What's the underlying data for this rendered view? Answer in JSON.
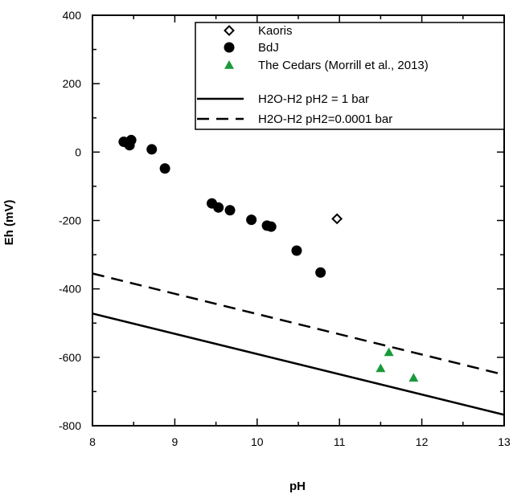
{
  "chart_data": {
    "type": "scatter",
    "xlabel": "pH",
    "ylabel": "Eh  (mV)",
    "xlim": [
      8,
      13
    ],
    "ylim": [
      -800,
      400
    ],
    "xticks": [
      8,
      9,
      10,
      11,
      12,
      13
    ],
    "yticks": [
      -800,
      -600,
      -400,
      -200,
      0,
      200,
      400
    ],
    "grid": false,
    "legend_position": "top-right",
    "series": [
      {
        "name": "Kaoris",
        "marker": "diamond-open",
        "color": "#000000",
        "points": [
          [
            10.97,
            -195
          ]
        ]
      },
      {
        "name": "BdJ",
        "marker": "circle-filled",
        "color": "#000000",
        "points": [
          [
            8.38,
            30
          ],
          [
            8.42,
            28
          ],
          [
            8.45,
            20
          ],
          [
            8.47,
            35
          ],
          [
            8.72,
            8
          ],
          [
            8.88,
            -48
          ],
          [
            9.45,
            -150
          ],
          [
            9.53,
            -162
          ],
          [
            9.67,
            -170
          ],
          [
            9.93,
            -198
          ],
          [
            10.12,
            -215
          ],
          [
            10.17,
            -218
          ],
          [
            10.48,
            -288
          ],
          [
            10.77,
            -352
          ]
        ]
      },
      {
        "name": "The Cedars (Morrill et al., 2013)",
        "marker": "triangle-filled",
        "color": "#1a9a3a",
        "points": [
          [
            11.5,
            -632
          ],
          [
            11.6,
            -585
          ],
          [
            11.9,
            -660
          ]
        ]
      }
    ],
    "lines": [
      {
        "name": "H2O-H2 pH2 = 1 bar",
        "style": "solid",
        "x": [
          8,
          13
        ],
        "y": [
          -472,
          -768
        ]
      },
      {
        "name": "H2O-H2 pH2=0.0001 bar",
        "style": "dashed",
        "x": [
          8,
          13
        ],
        "y": [
          -355,
          -651
        ]
      }
    ]
  }
}
